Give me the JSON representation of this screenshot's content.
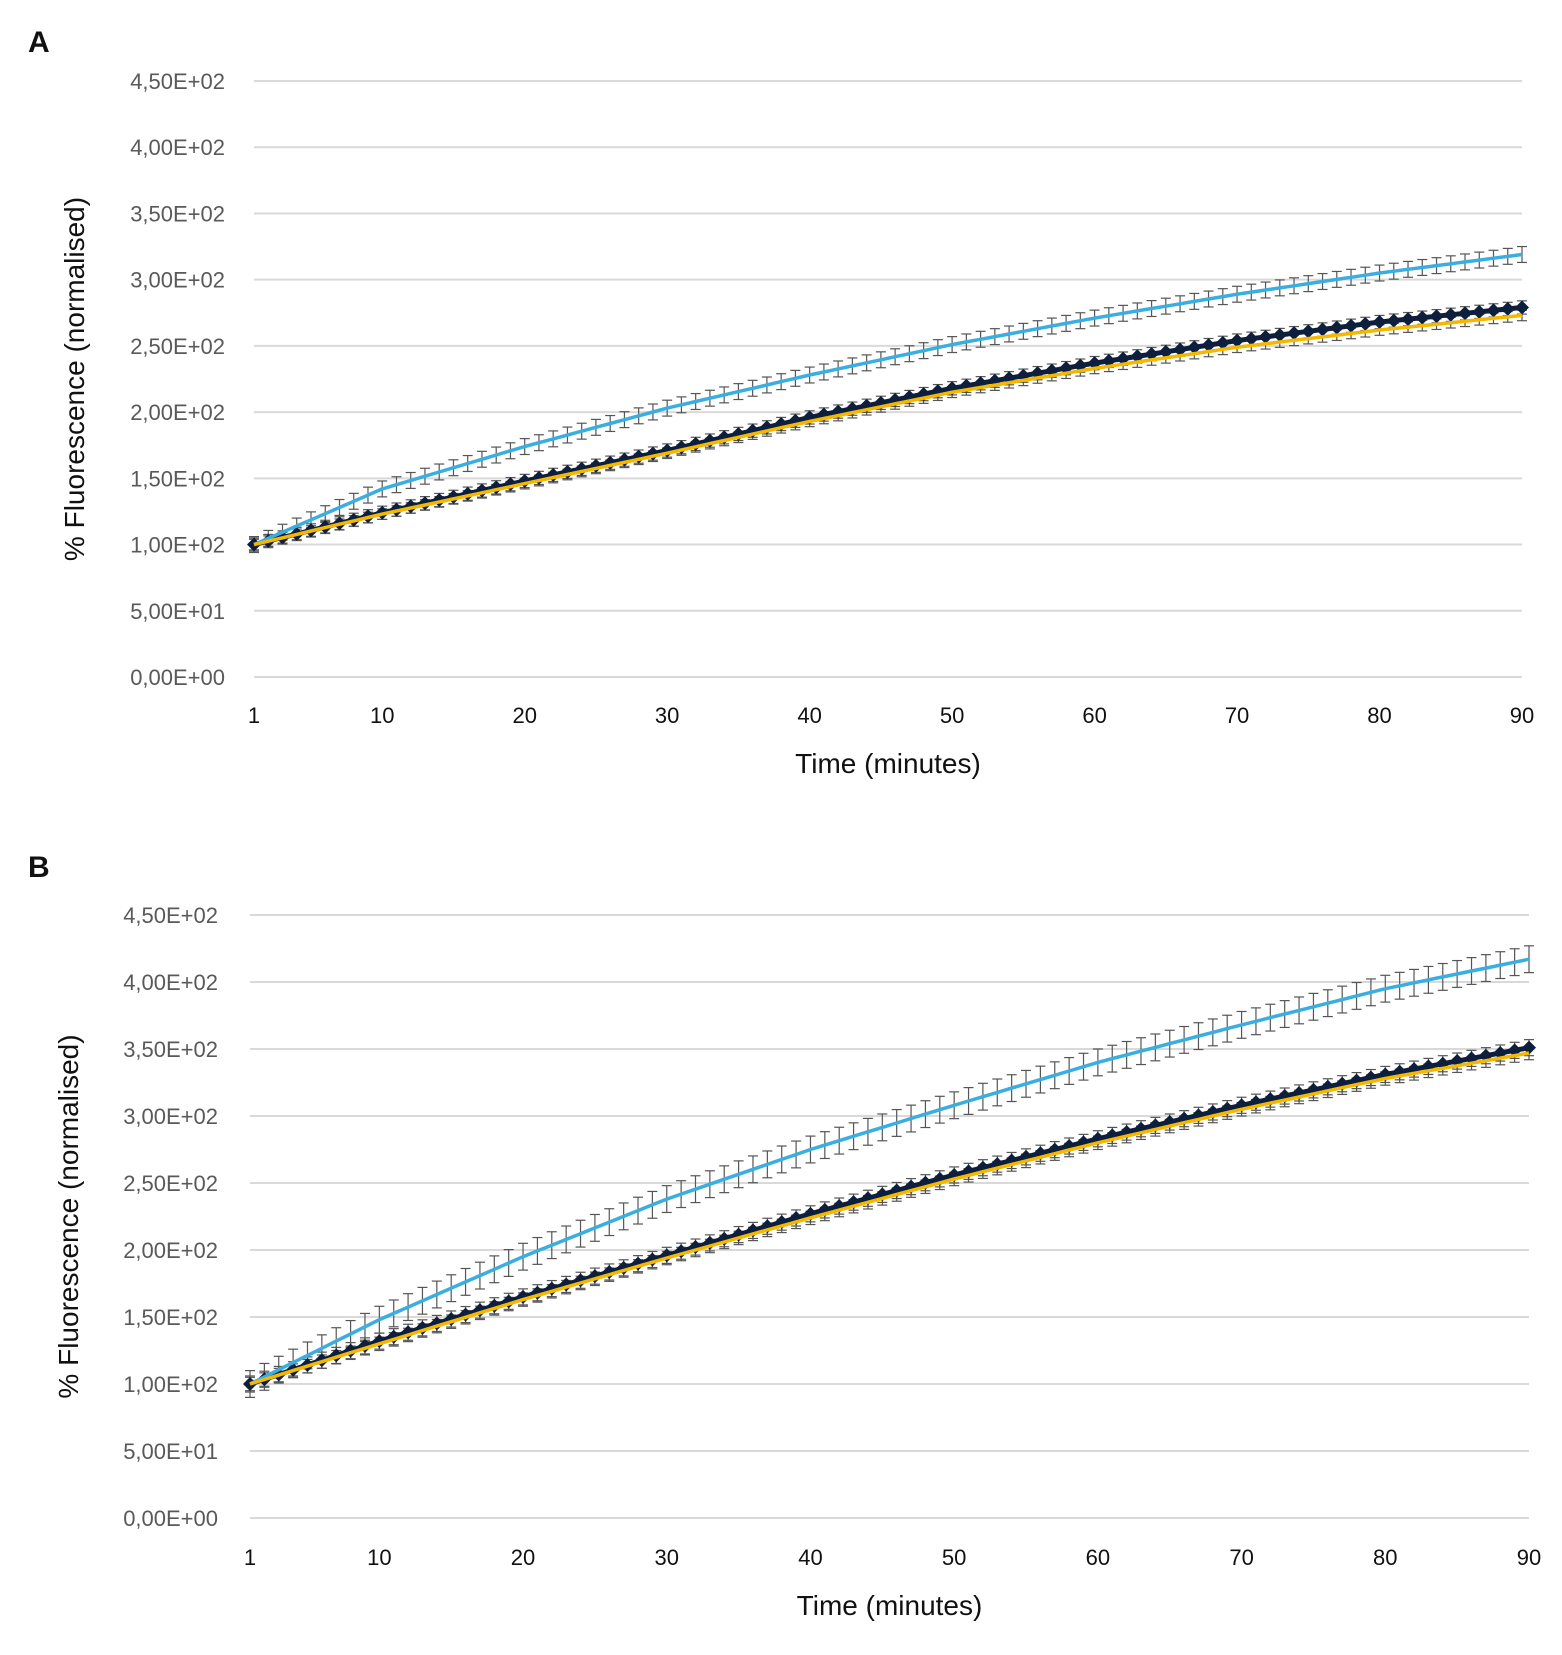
{
  "chart_data": [
    {
      "panel": "A",
      "type": "line",
      "xlabel": "Time (minutes)",
      "ylabel": "% Fluorescence (normalised)",
      "ylim": [
        0,
        450
      ],
      "yticks": [
        0,
        50,
        100,
        150,
        200,
        250,
        300,
        350,
        400,
        450
      ],
      "ytick_labels": [
        "0,00E+00",
        "5,00E+01",
        "1,00E+02",
        "1,50E+02",
        "2,00E+02",
        "2,50E+02",
        "3,00E+02",
        "3,50E+02",
        "4,00E+02",
        "4,50E+02"
      ],
      "xlim": [
        1,
        90
      ],
      "xticks": [
        1,
        10,
        20,
        30,
        40,
        50,
        60,
        70,
        80,
        90
      ],
      "xtick_labels": [
        "1",
        "10",
        "20",
        "30",
        "40",
        "50",
        "60",
        "70",
        "80",
        "90"
      ],
      "grid": true,
      "series": [
        {
          "name": "blue",
          "color": "#3aaee0",
          "marker": "none",
          "error": 6,
          "x": [
            1,
            10,
            20,
            30,
            40,
            50,
            60,
            70,
            80,
            90
          ],
          "values": [
            100,
            142,
            174,
            203,
            228,
            251,
            271,
            289,
            305,
            319
          ]
        },
        {
          "name": "navy",
          "color": "#0d1f3c",
          "marker": "diamond",
          "error": 5,
          "x": [
            1,
            10,
            20,
            30,
            40,
            50,
            60,
            70,
            80,
            90
          ],
          "values": [
            100,
            124,
            148,
            171,
            196,
            218,
            237,
            254,
            268,
            279
          ]
        },
        {
          "name": "yellow",
          "color": "#f5b800",
          "marker": "none",
          "error": 4,
          "x": [
            1,
            10,
            20,
            30,
            40,
            50,
            60,
            70,
            80,
            90
          ],
          "values": [
            100,
            123,
            146,
            169,
            193,
            215,
            233,
            249,
            262,
            273
          ]
        }
      ]
    },
    {
      "panel": "B",
      "type": "line",
      "xlabel": "Time (minutes)",
      "ylabel": "% Fluorescence (normalised)",
      "ylim": [
        0,
        450
      ],
      "yticks": [
        0,
        50,
        100,
        150,
        200,
        250,
        300,
        350,
        400,
        450
      ],
      "ytick_labels": [
        "0,00E+00",
        "5,00E+01",
        "1,00E+02",
        "1,50E+02",
        "2,00E+02",
        "2,50E+02",
        "3,00E+02",
        "3,50E+02",
        "4,00E+02",
        "4,50E+02"
      ],
      "xlim": [
        1,
        90
      ],
      "xticks": [
        1,
        10,
        20,
        30,
        40,
        50,
        60,
        70,
        80,
        90
      ],
      "xtick_labels": [
        "1",
        "10",
        "20",
        "30",
        "40",
        "50",
        "60",
        "70",
        "80",
        "90"
      ],
      "grid": true,
      "series": [
        {
          "name": "blue",
          "color": "#3aaee0",
          "marker": "none",
          "error": 10,
          "x": [
            1,
            10,
            20,
            30,
            40,
            50,
            60,
            70,
            80,
            90
          ],
          "values": [
            100,
            148,
            195,
            238,
            275,
            308,
            340,
            368,
            395,
            417
          ]
        },
        {
          "name": "navy",
          "color": "#0d1f3c",
          "marker": "diamond",
          "error": 6,
          "x": [
            1,
            10,
            20,
            30,
            40,
            50,
            60,
            70,
            80,
            90
          ],
          "values": [
            100,
            132,
            165,
            196,
            227,
            256,
            283,
            308,
            331,
            351
          ]
        },
        {
          "name": "yellow",
          "color": "#f5b800",
          "marker": "none",
          "error": 5,
          "x": [
            1,
            10,
            20,
            30,
            40,
            50,
            60,
            70,
            80,
            90
          ],
          "values": [
            100,
            130,
            163,
            194,
            224,
            253,
            280,
            305,
            328,
            347
          ]
        }
      ]
    }
  ],
  "panels": [
    {
      "letter": "A"
    },
    {
      "letter": "B"
    }
  ]
}
